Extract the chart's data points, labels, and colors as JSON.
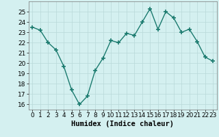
{
  "title": "",
  "xlabel": "Humidex (Indice chaleur)",
  "ylabel": "",
  "x": [
    0,
    1,
    2,
    3,
    4,
    5,
    6,
    7,
    8,
    9,
    10,
    11,
    12,
    13,
    14,
    15,
    16,
    17,
    18,
    19,
    20,
    21,
    22,
    23
  ],
  "y": [
    23.5,
    23.2,
    22.0,
    21.3,
    19.7,
    17.4,
    16.0,
    16.8,
    19.3,
    20.5,
    22.2,
    22.0,
    22.9,
    22.7,
    24.0,
    25.3,
    23.3,
    25.0,
    24.4,
    23.0,
    23.3,
    22.1,
    20.6,
    20.2
  ],
  "ylim": [
    15.5,
    26.0
  ],
  "xlim": [
    -0.5,
    23.5
  ],
  "yticks": [
    16,
    17,
    18,
    19,
    20,
    21,
    22,
    23,
    24,
    25
  ],
  "xticks": [
    0,
    1,
    2,
    3,
    4,
    5,
    6,
    7,
    8,
    9,
    10,
    11,
    12,
    13,
    14,
    15,
    16,
    17,
    18,
    19,
    20,
    21,
    22,
    23
  ],
  "line_color": "#1a7a6e",
  "marker": "+",
  "markersize": 4,
  "linewidth": 1.0,
  "bg_color": "#d4f0f0",
  "grid_color": "#b8d8d8",
  "xlabel_fontsize": 7.5,
  "tick_fontsize": 6.5
}
